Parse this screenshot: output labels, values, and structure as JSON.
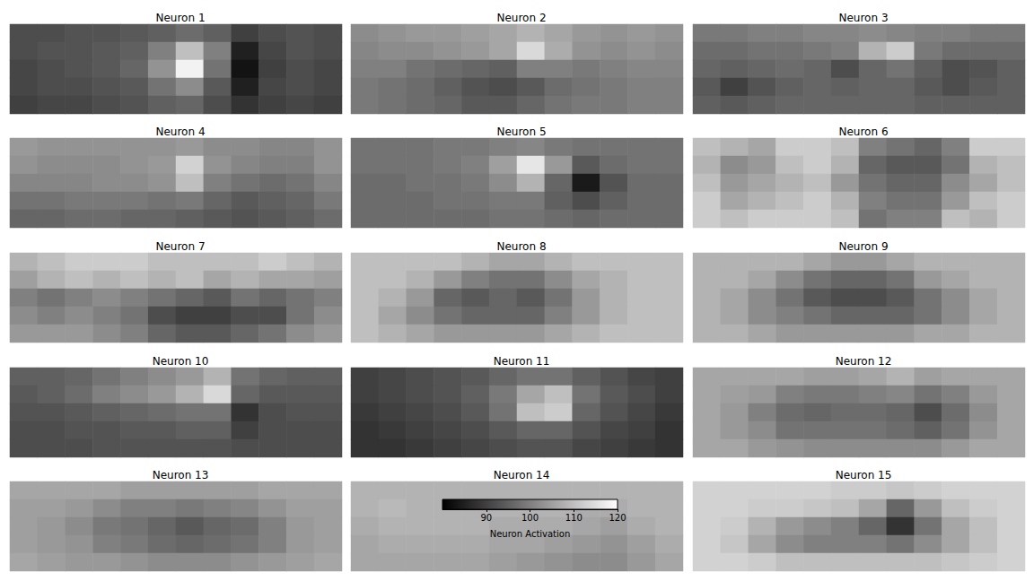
{
  "chart_data": {
    "type": "heatmap",
    "tick_labels": false,
    "colorbar": {
      "range": [
        80,
        120
      ],
      "ticks": [
        90,
        100,
        110,
        120
      ],
      "label": "Neuron Activation"
    },
    "panels": [
      {
        "title": "Neuron 1",
        "cells": [
          [
            92,
            92,
            93,
            93,
            94,
            95,
            97,
            95,
            90,
            92,
            93,
            92
          ],
          [
            92,
            93,
            93,
            94,
            95,
            100,
            110,
            100,
            85,
            91,
            93,
            92
          ],
          [
            91,
            92,
            93,
            94,
            96,
            103,
            118,
            98,
            83,
            90,
            92,
            91
          ],
          [
            91,
            92,
            92,
            93,
            94,
            98,
            102,
            94,
            85,
            91,
            92,
            91
          ],
          [
            90,
            91,
            91,
            92,
            93,
            95,
            96,
            92,
            88,
            90,
            91,
            90
          ]
        ]
      },
      {
        "title": "Neuron 2",
        "cells": [
          [
            102,
            103,
            104,
            104,
            105,
            106,
            108,
            106,
            104,
            103,
            104,
            103
          ],
          [
            101,
            102,
            102,
            103,
            104,
            106,
            114,
            107,
            103,
            102,
            103,
            102
          ],
          [
            100,
            100,
            98,
            97,
            96,
            95,
            100,
            100,
            99,
            100,
            101,
            101
          ],
          [
            99,
            98,
            97,
            95,
            93,
            92,
            94,
            97,
            98,
            99,
            100,
            100
          ],
          [
            99,
            98,
            97,
            96,
            94,
            94,
            96,
            98,
            99,
            99,
            100,
            100
          ]
        ]
      },
      {
        "title": "Neuron 3",
        "cells": [
          [
            99,
            99,
            100,
            100,
            101,
            101,
            102,
            101,
            100,
            100,
            99,
            99
          ],
          [
            97,
            97,
            98,
            98,
            99,
            100,
            108,
            112,
            99,
            97,
            97,
            97
          ],
          [
            96,
            95,
            96,
            97,
            96,
            92,
            96,
            98,
            95,
            92,
            93,
            95
          ],
          [
            94,
            90,
            93,
            95,
            96,
            95,
            96,
            96,
            94,
            92,
            94,
            95
          ],
          [
            95,
            94,
            95,
            96,
            96,
            96,
            96,
            96,
            95,
            95,
            95,
            95
          ]
        ]
      },
      {
        "title": "Neuron 4",
        "cells": [
          [
            104,
            103,
            103,
            103,
            103,
            103,
            104,
            102,
            102,
            101,
            101,
            103
          ],
          [
            103,
            102,
            102,
            102,
            103,
            104,
            113,
            103,
            101,
            100,
            100,
            103
          ],
          [
            101,
            101,
            101,
            102,
            102,
            103,
            110,
            100,
            98,
            97,
            98,
            101
          ],
          [
            98,
            98,
            99,
            99,
            99,
            98,
            99,
            96,
            94,
            95,
            96,
            99
          ],
          [
            96,
            96,
            97,
            97,
            96,
            96,
            95,
            94,
            93,
            94,
            95,
            97
          ]
        ]
      },
      {
        "title": "Neuron 5",
        "cells": [
          [
            98,
            98,
            98,
            99,
            99,
            100,
            101,
            99,
            98,
            98,
            98,
            98
          ],
          [
            98,
            98,
            98,
            99,
            100,
            105,
            116,
            104,
            94,
            97,
            98,
            98
          ],
          [
            97,
            97,
            98,
            98,
            99,
            102,
            108,
            96,
            84,
            93,
            97,
            97
          ],
          [
            97,
            97,
            97,
            98,
            98,
            99,
            99,
            95,
            92,
            95,
            97,
            97
          ],
          [
            97,
            97,
            97,
            97,
            97,
            98,
            98,
            97,
            96,
            97,
            97,
            97
          ]
        ]
      },
      {
        "title": "Neuron 6",
        "cells": [
          [
            110,
            108,
            106,
            112,
            112,
            110,
            100,
            98,
            96,
            100,
            112,
            112
          ],
          [
            108,
            102,
            104,
            110,
            112,
            108,
            96,
            94,
            94,
            98,
            108,
            110
          ],
          [
            110,
            104,
            106,
            108,
            110,
            104,
            98,
            96,
            96,
            102,
            106,
            110
          ],
          [
            112,
            106,
            108,
            110,
            112,
            108,
            100,
            98,
            98,
            104,
            110,
            112
          ],
          [
            112,
            110,
            112,
            112,
            112,
            110,
            98,
            100,
            100,
            110,
            108,
            112
          ]
        ]
      },
      {
        "title": "Neuron 7",
        "cells": [
          [
            108,
            110,
            112,
            112,
            112,
            110,
            110,
            110,
            110,
            112,
            110,
            108
          ],
          [
            105,
            108,
            110,
            108,
            110,
            108,
            110,
            106,
            108,
            106,
            106,
            105
          ],
          [
            100,
            98,
            100,
            102,
            100,
            98,
            96,
            94,
            98,
            96,
            98,
            100
          ],
          [
            102,
            100,
            102,
            100,
            98,
            92,
            90,
            90,
            92,
            92,
            98,
            102
          ],
          [
            104,
            104,
            104,
            102,
            100,
            96,
            94,
            94,
            96,
            98,
            102,
            104
          ]
        ]
      },
      {
        "title": "Neuron 8",
        "cells": [
          [
            110,
            110,
            110,
            110,
            108,
            106,
            106,
            108,
            110,
            110,
            110,
            110
          ],
          [
            110,
            110,
            108,
            104,
            100,
            98,
            98,
            102,
            106,
            108,
            110,
            110
          ],
          [
            110,
            108,
            104,
            96,
            94,
            96,
            94,
            98,
            104,
            108,
            110,
            110
          ],
          [
            110,
            106,
            102,
            98,
            96,
            96,
            96,
            100,
            104,
            108,
            110,
            110
          ],
          [
            110,
            108,
            106,
            104,
            104,
            104,
            104,
            106,
            108,
            110,
            110,
            110
          ]
        ]
      },
      {
        "title": "Neuron 9",
        "cells": [
          [
            108,
            108,
            108,
            108,
            106,
            104,
            104,
            106,
            108,
            108,
            108,
            108
          ],
          [
            108,
            108,
            106,
            102,
            98,
            96,
            96,
            98,
            104,
            106,
            108,
            108
          ],
          [
            108,
            106,
            102,
            98,
            94,
            92,
            92,
            94,
            98,
            102,
            106,
            108
          ],
          [
            108,
            106,
            102,
            100,
            98,
            96,
            96,
            96,
            98,
            102,
            106,
            108
          ],
          [
            108,
            108,
            106,
            104,
            104,
            104,
            104,
            104,
            106,
            106,
            108,
            108
          ]
        ]
      },
      {
        "title": "Neuron 10",
        "cells": [
          [
            95,
            95,
            96,
            98,
            100,
            102,
            104,
            108,
            98,
            96,
            95,
            95
          ],
          [
            94,
            95,
            97,
            100,
            102,
            104,
            108,
            114,
            96,
            94,
            94,
            94
          ],
          [
            93,
            93,
            94,
            95,
            96,
            97,
            98,
            98,
            88,
            92,
            93,
            93
          ],
          [
            92,
            92,
            93,
            93,
            94,
            94,
            95,
            95,
            90,
            92,
            92,
            92
          ],
          [
            92,
            92,
            92,
            93,
            93,
            93,
            93,
            93,
            92,
            92,
            92,
            92
          ]
        ]
      },
      {
        "title": "Neuron 11",
        "cells": [
          [
            90,
            91,
            92,
            93,
            94,
            96,
            98,
            98,
            95,
            93,
            91,
            90
          ],
          [
            90,
            91,
            92,
            93,
            95,
            99,
            106,
            110,
            98,
            94,
            92,
            90
          ],
          [
            89,
            90,
            91,
            92,
            94,
            98,
            110,
            112,
            96,
            93,
            91,
            89
          ],
          [
            88,
            89,
            90,
            91,
            92,
            94,
            96,
            96,
            93,
            91,
            90,
            88
          ],
          [
            88,
            88,
            89,
            90,
            91,
            92,
            93,
            93,
            91,
            90,
            89,
            88
          ]
        ]
      },
      {
        "title": "Neuron 12",
        "cells": [
          [
            106,
            106,
            106,
            106,
            105,
            105,
            106,
            108,
            105,
            106,
            106,
            106
          ],
          [
            106,
            105,
            104,
            100,
            99,
            99,
            100,
            101,
            98,
            100,
            104,
            106
          ],
          [
            106,
            104,
            100,
            97,
            96,
            97,
            97,
            96,
            92,
            97,
            102,
            106
          ],
          [
            106,
            104,
            102,
            98,
            98,
            98,
            98,
            97,
            95,
            98,
            103,
            106
          ],
          [
            106,
            106,
            104,
            103,
            102,
            102,
            102,
            102,
            102,
            104,
            106,
            106
          ]
        ]
      },
      {
        "title": "Neuron 13",
        "cells": [
          [
            106,
            106,
            106,
            106,
            105,
            105,
            105,
            105,
            105,
            106,
            106,
            106
          ],
          [
            105,
            105,
            104,
            102,
            100,
            100,
            99,
            100,
            101,
            103,
            105,
            105
          ],
          [
            105,
            104,
            102,
            99,
            98,
            96,
            94,
            96,
            97,
            100,
            104,
            105
          ],
          [
            105,
            104,
            103,
            100,
            99,
            97,
            96,
            97,
            98,
            100,
            104,
            105
          ],
          [
            106,
            105,
            104,
            104,
            103,
            102,
            102,
            102,
            103,
            104,
            105,
            106
          ]
        ]
      },
      {
        "title": "Neuron 14",
        "cells": [
          [
            108,
            108,
            108,
            108,
            108,
            108,
            108,
            108,
            108,
            108,
            108,
            108
          ],
          [
            108,
            109,
            108,
            108,
            108,
            108,
            108,
            108,
            107,
            107,
            108,
            108
          ],
          [
            107,
            108,
            108,
            108,
            108,
            107,
            107,
            107,
            106,
            105,
            107,
            108
          ],
          [
            106,
            107,
            107,
            107,
            107,
            106,
            106,
            105,
            104,
            103,
            105,
            107
          ],
          [
            106,
            106,
            106,
            106,
            106,
            105,
            104,
            103,
            102,
            102,
            104,
            106
          ]
        ]
      },
      {
        "title": "Neuron 15",
        "cells": [
          [
            113,
            113,
            113,
            113,
            113,
            112,
            112,
            111,
            112,
            113,
            113,
            113
          ],
          [
            113,
            113,
            112,
            112,
            111,
            110,
            106,
            96,
            104,
            110,
            112,
            113
          ],
          [
            113,
            112,
            108,
            104,
            102,
            100,
            96,
            88,
            98,
            106,
            110,
            113
          ],
          [
            113,
            111,
            106,
            102,
            100,
            100,
            100,
            98,
            102,
            106,
            110,
            113
          ],
          [
            113,
            113,
            112,
            110,
            110,
            110,
            110,
            110,
            110,
            111,
            112,
            113
          ]
        ]
      }
    ]
  }
}
